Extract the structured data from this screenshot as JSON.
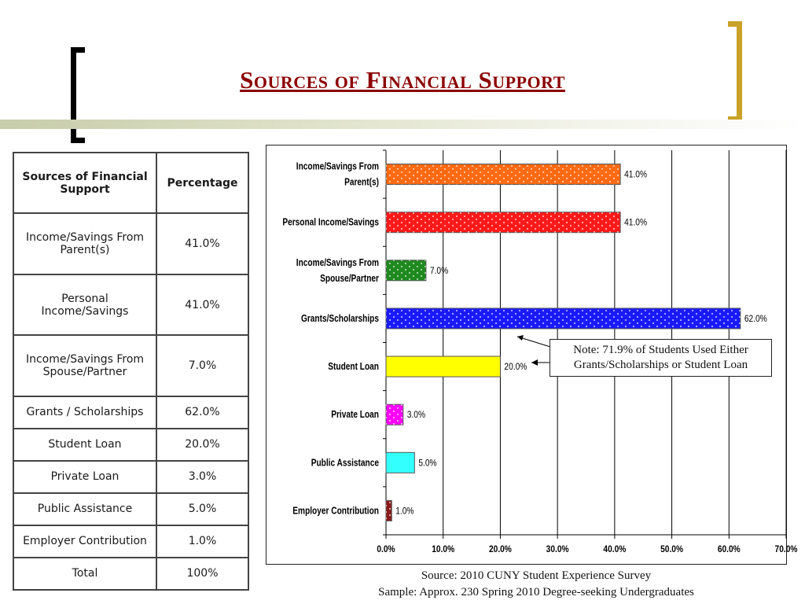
{
  "title": "Sources of Financial Support",
  "table": {
    "headers": [
      "Sources of Financial Support",
      "Percentage"
    ],
    "rows": [
      {
        "source": "Income/Savings From Parent(s)",
        "pct": "41.0%"
      },
      {
        "source": "Personal Income/Savings",
        "pct": "41.0%"
      },
      {
        "source": "Income/Savings From Spouse/Partner",
        "pct": "7.0%"
      },
      {
        "source": "Grants / Scholarships",
        "pct": "62.0%"
      },
      {
        "source": "Student Loan",
        "pct": "20.0%"
      },
      {
        "source": "Private Loan",
        "pct": "3.0%"
      },
      {
        "source": "Public Assistance",
        "pct": "5.0%"
      },
      {
        "source": "Employer Contribution",
        "pct": "1.0%"
      },
      {
        "source": "Total",
        "pct": "100%"
      }
    ]
  },
  "chart_data": {
    "type": "bar",
    "orientation": "horizontal",
    "categories": [
      "Income/Savings From Parent(s)",
      "Personal Income/Savings",
      "Income/Savings From Spouse/Partner",
      "Grants/Scholarships",
      "Student Loan",
      "Private Loan",
      "Public Assistance",
      "Employer Contribution"
    ],
    "values": [
      41.0,
      41.0,
      7.0,
      62.0,
      20.0,
      3.0,
      5.0,
      1.0
    ],
    "data_labels": [
      "41.0%",
      "41.0%",
      "7.0%",
      "62.0%",
      "20.0%",
      "3.0%",
      "5.0%",
      "1.0%"
    ],
    "bar_colors": [
      "#ff6a13",
      "#ff1a1a",
      "#1f8a1f",
      "#1a1aff",
      "#ffff00",
      "#ff00ff",
      "#33ffff",
      "#8b1a1a"
    ],
    "dotted_pattern": [
      true,
      true,
      true,
      true,
      false,
      true,
      false,
      true
    ],
    "xlim": [
      0,
      70
    ],
    "xticks": [
      "0.0%",
      "10.0%",
      "20.0%",
      "30.0%",
      "40.0%",
      "50.0%",
      "60.0%",
      "70.0%"
    ],
    "grid": true,
    "xlabel": "",
    "ylabel": ""
  },
  "note": {
    "line1": "Note: 71.9% of Students Used Either",
    "line2": "Grants/Scholarships or Student Loan"
  },
  "source": {
    "line1": "Source: 2010 CUNY Student Experience Survey",
    "line2": "Sample: Approx. 230 Spring 2010 Degree-seeking Undergraduates"
  },
  "colors": {
    "title": "#8b0000",
    "bracket_left": "#000000",
    "bracket_right": "#c9a227"
  }
}
